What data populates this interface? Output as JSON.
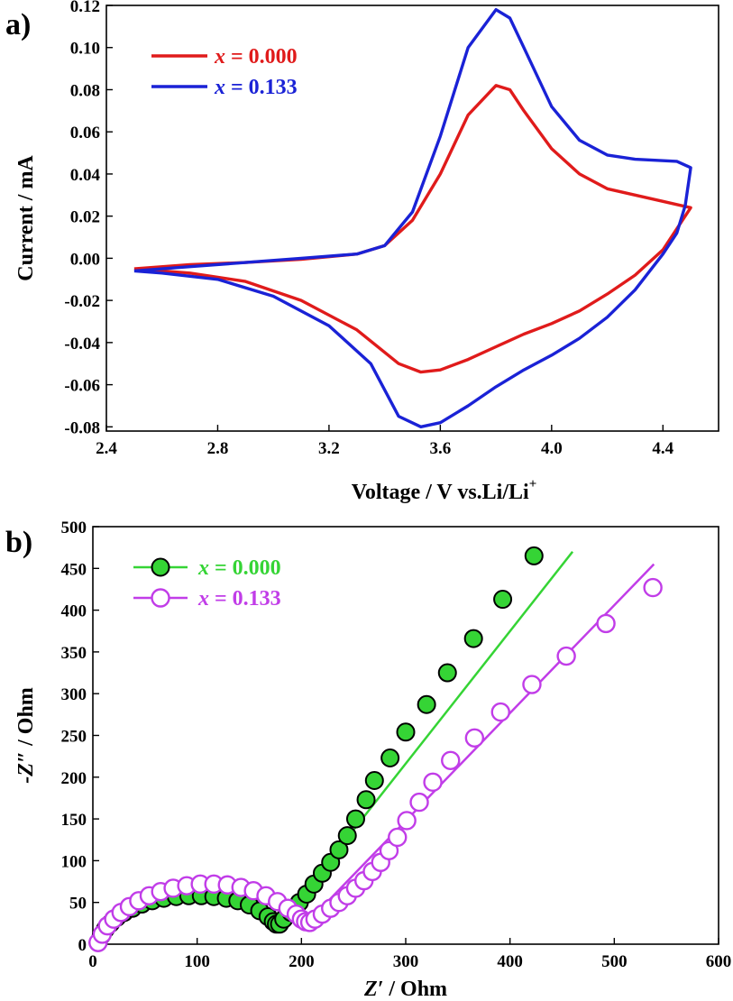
{
  "chart_data": [
    {
      "panel": "a)",
      "type": "line",
      "xlabel": "Voltage / V vs.Li/Li",
      "xlabel_sup": "+",
      "ylabel": "Current / mA",
      "xlim": [
        2.4,
        4.6
      ],
      "ylim": [
        -0.082,
        0.12
      ],
      "xticks": [
        2.4,
        2.8,
        3.2,
        3.6,
        4.0,
        4.4
      ],
      "xtick_labels": [
        "2.4",
        "2.8",
        "3.2",
        "3.6",
        "4.0",
        "4.4"
      ],
      "yticks": [
        -0.08,
        -0.06,
        -0.04,
        -0.02,
        0.0,
        0.02,
        0.04,
        0.06,
        0.08,
        0.1,
        0.12
      ],
      "ytick_labels": [
        "-0.08",
        "-0.06",
        "-0.04",
        "-0.02",
        "0.00",
        "0.02",
        "0.04",
        "0.06",
        "0.08",
        "0.10",
        "0.12"
      ],
      "legend": "top-left",
      "series": [
        {
          "name": "x = 0.000",
          "name_italic": "x",
          "name_rest": " = 0.000",
          "color": "#e01b1b",
          "points": [
            [
              2.5,
              -0.005
            ],
            [
              2.7,
              -0.003
            ],
            [
              2.9,
              -0.002
            ],
            [
              3.1,
              -0.0005
            ],
            [
              3.3,
              0.002
            ],
            [
              3.4,
              0.006
            ],
            [
              3.5,
              0.018
            ],
            [
              3.6,
              0.04
            ],
            [
              3.7,
              0.068
            ],
            [
              3.8,
              0.082
            ],
            [
              3.85,
              0.08
            ],
            [
              3.9,
              0.07
            ],
            [
              4.0,
              0.052
            ],
            [
              4.1,
              0.04
            ],
            [
              4.2,
              0.033
            ],
            [
              4.3,
              0.03
            ],
            [
              4.4,
              0.027
            ],
            [
              4.5,
              0.024
            ],
            [
              4.45,
              0.014
            ],
            [
              4.4,
              0.004
            ],
            [
              4.3,
              -0.008
            ],
            [
              4.2,
              -0.017
            ],
            [
              4.1,
              -0.025
            ],
            [
              4.0,
              -0.031
            ],
            [
              3.9,
              -0.036
            ],
            [
              3.8,
              -0.042
            ],
            [
              3.7,
              -0.048
            ],
            [
              3.6,
              -0.053
            ],
            [
              3.53,
              -0.054
            ],
            [
              3.45,
              -0.05
            ],
            [
              3.3,
              -0.034
            ],
            [
              3.1,
              -0.02
            ],
            [
              2.9,
              -0.011
            ],
            [
              2.7,
              -0.007
            ],
            [
              2.5,
              -0.005
            ]
          ]
        },
        {
          "name": "x = 0.133",
          "name_italic": "x",
          "name_rest": " = 0.133",
          "color": "#1a22d6",
          "points": [
            [
              2.5,
              -0.006
            ],
            [
              2.7,
              -0.004
            ],
            [
              2.9,
              -0.002
            ],
            [
              3.1,
              0.0
            ],
            [
              3.3,
              0.002
            ],
            [
              3.4,
              0.006
            ],
            [
              3.5,
              0.022
            ],
            [
              3.6,
              0.058
            ],
            [
              3.7,
              0.1
            ],
            [
              3.8,
              0.118
            ],
            [
              3.85,
              0.114
            ],
            [
              3.9,
              0.1
            ],
            [
              4.0,
              0.072
            ],
            [
              4.1,
              0.056
            ],
            [
              4.2,
              0.049
            ],
            [
              4.3,
              0.047
            ],
            [
              4.45,
              0.046
            ],
            [
              4.5,
              0.043
            ],
            [
              4.48,
              0.025
            ],
            [
              4.45,
              0.012
            ],
            [
              4.4,
              0.002
            ],
            [
              4.3,
              -0.015
            ],
            [
              4.2,
              -0.028
            ],
            [
              4.1,
              -0.038
            ],
            [
              4.0,
              -0.046
            ],
            [
              3.9,
              -0.053
            ],
            [
              3.8,
              -0.061
            ],
            [
              3.7,
              -0.07
            ],
            [
              3.6,
              -0.078
            ],
            [
              3.53,
              -0.08
            ],
            [
              3.45,
              -0.075
            ],
            [
              3.35,
              -0.05
            ],
            [
              3.2,
              -0.032
            ],
            [
              3.0,
              -0.018
            ],
            [
              2.8,
              -0.01
            ],
            [
              2.6,
              -0.007
            ],
            [
              2.5,
              -0.006
            ]
          ]
        }
      ]
    },
    {
      "panel": "b)",
      "type": "scatter",
      "xlabel_italic": "Z′",
      "xlabel_rest": " / Ohm",
      "ylabel_italic": "-Z″",
      "ylabel_rest": " / Ohm",
      "xlim": [
        0,
        600
      ],
      "ylim": [
        0,
        500
      ],
      "xticks": [
        0,
        100,
        200,
        300,
        400,
        500,
        600
      ],
      "xtick_labels": [
        "0",
        "100",
        "200",
        "300",
        "400",
        "500",
        "600"
      ],
      "yticks": [
        0,
        50,
        100,
        150,
        200,
        250,
        300,
        350,
        400,
        450,
        500
      ],
      "ytick_labels": [
        "0",
        "50",
        "100",
        "150",
        "200",
        "250",
        "300",
        "350",
        "400",
        "450",
        "500"
      ],
      "legend": "top-left",
      "series": [
        {
          "name": "x = 0.000",
          "name_italic": "x",
          "name_rest": " = 0.000",
          "color": "#35d435",
          "marker": "filled-circle",
          "points": [
            [
              5,
              2
            ],
            [
              8,
              10
            ],
            [
              12,
              18
            ],
            [
              17,
              25
            ],
            [
              23,
              32
            ],
            [
              30,
              38
            ],
            [
              38,
              43
            ],
            [
              47,
              48
            ],
            [
              57,
              52
            ],
            [
              68,
              55
            ],
            [
              80,
              57
            ],
            [
              92,
              58
            ],
            [
              104,
              58
            ],
            [
              116,
              57
            ],
            [
              128,
              55
            ],
            [
              139,
              52
            ],
            [
              150,
              47
            ],
            [
              160,
              40
            ],
            [
              168,
              33
            ],
            [
              173,
              27
            ],
            [
              176,
              24
            ],
            [
              179,
              24
            ],
            [
              183,
              30
            ],
            [
              190,
              38
            ],
            [
              198,
              50
            ],
            [
              205,
              60
            ],
            [
              212,
              72
            ],
            [
              220,
              85
            ],
            [
              228,
              98
            ],
            [
              236,
              113
            ],
            [
              244,
              130
            ],
            [
              252,
              150
            ],
            [
              262,
              173
            ],
            [
              270,
              196
            ],
            [
              285,
              223
            ],
            [
              300,
              254
            ],
            [
              320,
              287
            ],
            [
              340,
              325
            ],
            [
              365,
              366
            ],
            [
              393,
              413
            ],
            [
              423,
              465
            ]
          ],
          "fit_line": [
            [
              175,
              18
            ],
            [
              460,
              470
            ]
          ]
        },
        {
          "name": "x = 0.133",
          "name_italic": "x",
          "name_rest": " = 0.133",
          "color": "#c13de8",
          "marker": "open-circle",
          "points": [
            [
              5,
              2
            ],
            [
              9,
              12
            ],
            [
              14,
              22
            ],
            [
              20,
              30
            ],
            [
              27,
              38
            ],
            [
              35,
              45
            ],
            [
              44,
              52
            ],
            [
              54,
              58
            ],
            [
              65,
              63
            ],
            [
              77,
              67
            ],
            [
              90,
              70
            ],
            [
              103,
              72
            ],
            [
              116,
              72
            ],
            [
              129,
              71
            ],
            [
              142,
              68
            ],
            [
              154,
              64
            ],
            [
              166,
              58
            ],
            [
              177,
              51
            ],
            [
              187,
              43
            ],
            [
              195,
              36
            ],
            [
              200,
              30
            ],
            [
              204,
              27
            ],
            [
              208,
              26
            ],
            [
              213,
              30
            ],
            [
              220,
              36
            ],
            [
              228,
              43
            ],
            [
              236,
              50
            ],
            [
              244,
              58
            ],
            [
              252,
              67
            ],
            [
              260,
              76
            ],
            [
              268,
              87
            ],
            [
              276,
              98
            ],
            [
              284,
              112
            ],
            [
              292,
              128
            ],
            [
              301,
              148
            ],
            [
              313,
              170
            ],
            [
              326,
              194
            ],
            [
              343,
              220
            ],
            [
              366,
              247
            ],
            [
              391,
              278
            ],
            [
              421,
              311
            ],
            [
              454,
              345
            ],
            [
              492,
              384
            ],
            [
              537,
              427
            ]
          ],
          "fit_line": [
            [
              205,
              25
            ],
            [
              538,
              455
            ]
          ]
        }
      ]
    }
  ]
}
